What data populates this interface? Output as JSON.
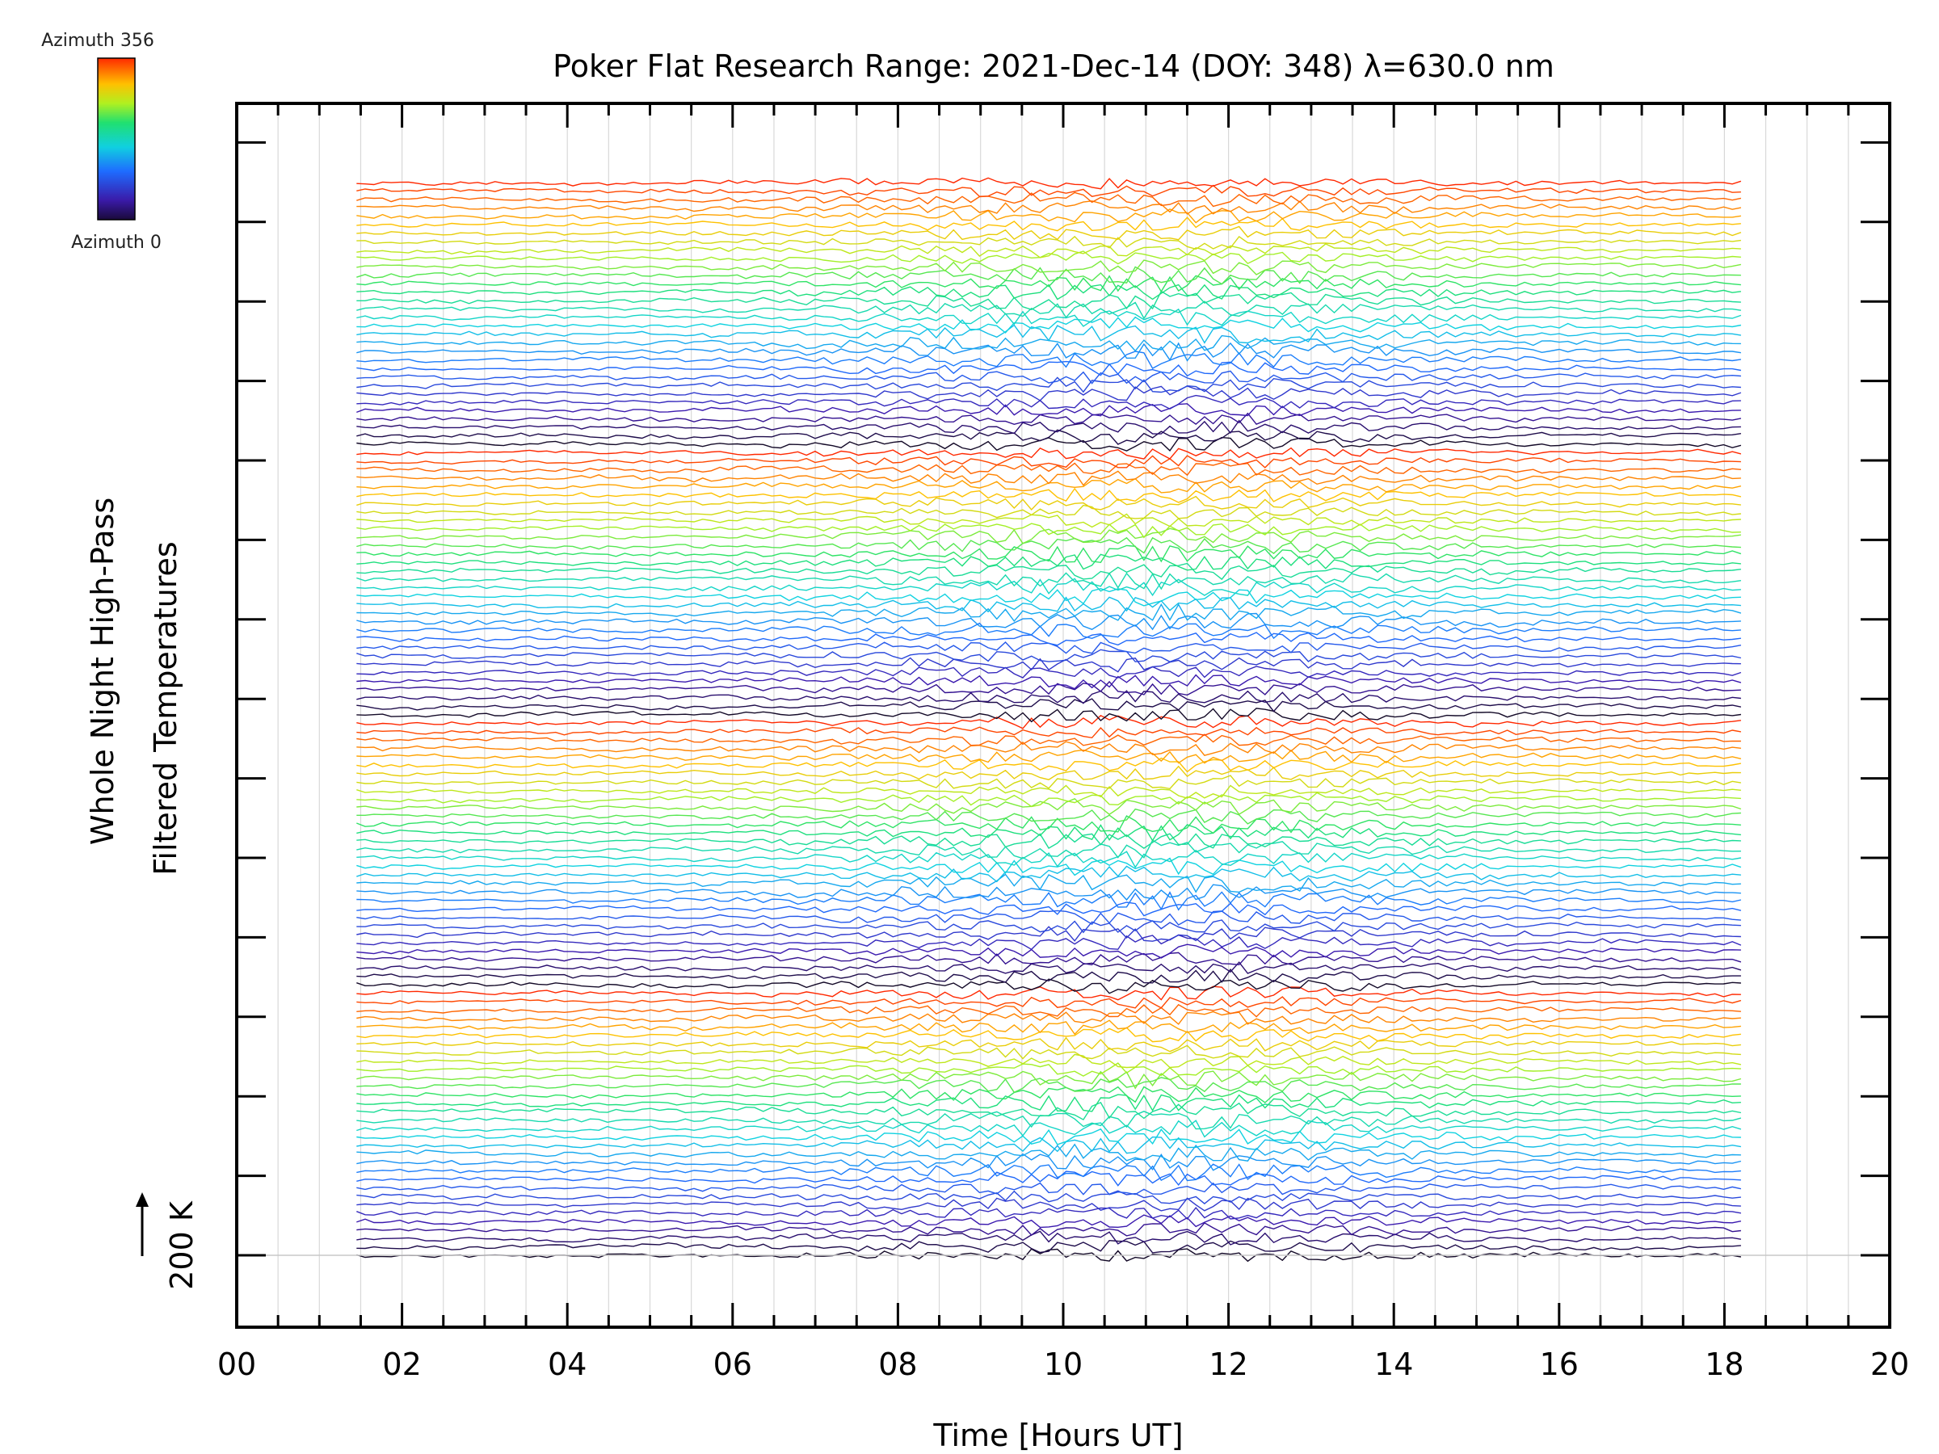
{
  "chart_data": {
    "type": "line",
    "title": "Poker Flat Research Range: 2021-Dec-14 (DOY: 348) λ=630.0 nm",
    "xlabel": "Time [Hours UT]",
    "ylabel_line1": "Whole Night High-Pass",
    "ylabel_line2": "Filtered Temperatures",
    "scale_label": "200 K",
    "xlim": [
      0,
      20
    ],
    "x_ticks": [
      "00",
      "02",
      "04",
      "06",
      "08",
      "10",
      "12",
      "14",
      "16",
      "18",
      "20"
    ],
    "x_data_range": [
      1.45,
      18.2
    ],
    "trace_count": 128,
    "grid": "vertical every 0.5 h",
    "colorbar": {
      "max_label": "Azimuth 356",
      "min_label": "Azimuth 0",
      "colormap": "rainbow (black/purple → blue → cyan → green → yellow → orange → red)"
    }
  }
}
